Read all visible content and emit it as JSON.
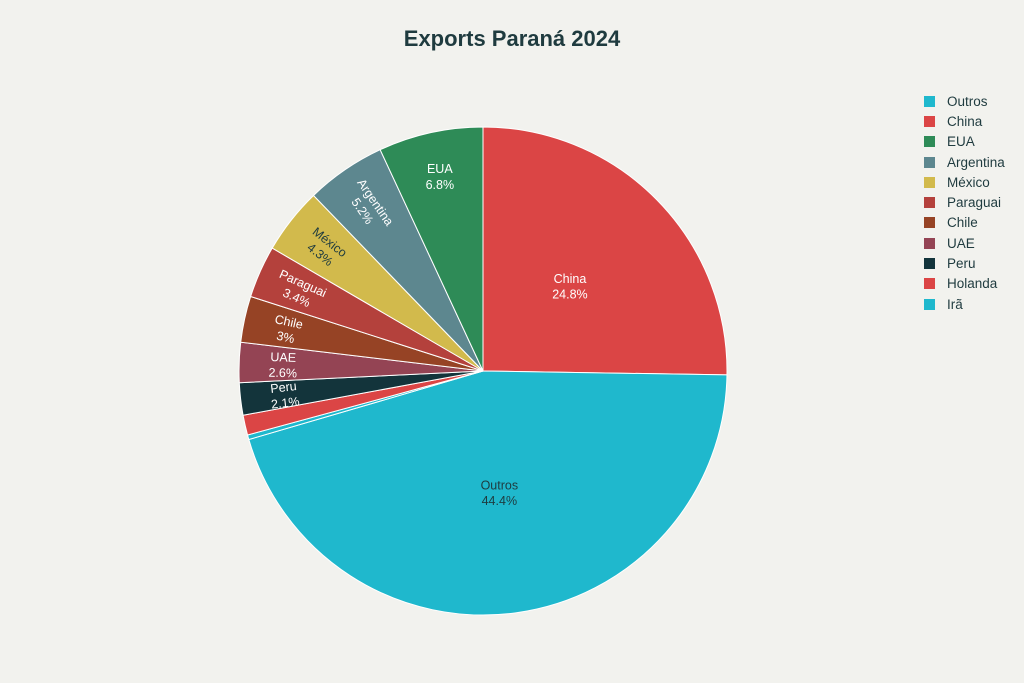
{
  "chart_data": {
    "type": "pie",
    "title": "Exports Paraná 2024",
    "categories": [
      "Outros",
      "China",
      "EUA",
      "Argentina",
      "México",
      "Paraguai",
      "Chile",
      "UAE",
      "Peru",
      "Holanda",
      "Irã"
    ],
    "values": [
      44.4,
      24.8,
      6.8,
      5.2,
      4.3,
      3.4,
      3.0,
      2.6,
      2.1,
      1.3,
      0.3
    ],
    "data_labels": [
      "44.4%",
      "24.8%",
      "6.8%",
      "5.2%",
      "4.3%",
      "3.4%",
      "3%",
      "2.6%",
      "2.1%",
      "",
      ""
    ],
    "colors": [
      "#1fb8cd",
      "#db4545",
      "#2e8b57",
      "#5d878f",
      "#d2ba4c",
      "#b4413c",
      "#964325",
      "#944454",
      "#13343b",
      "#db4545",
      "#1fb8cd"
    ],
    "legend_position": "top-right"
  }
}
